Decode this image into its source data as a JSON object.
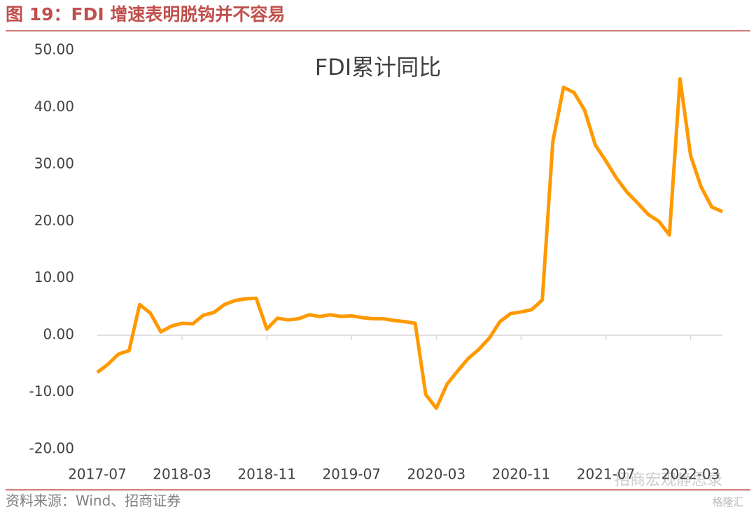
{
  "header": {
    "title": "图 19：FDI 增速表明脱钩并不容易"
  },
  "chart_data": {
    "type": "line",
    "title": "FDI累计同比",
    "categories": [
      "2017-07",
      null,
      null,
      null,
      null,
      null,
      null,
      null,
      "2018-03",
      null,
      null,
      null,
      null,
      null,
      null,
      null,
      "2018-11",
      null,
      null,
      null,
      null,
      null,
      null,
      null,
      "2019-07",
      null,
      null,
      null,
      null,
      null,
      null,
      null,
      "2020-03",
      null,
      null,
      null,
      null,
      null,
      null,
      null,
      "2020-11",
      null,
      null,
      null,
      null,
      null,
      null,
      null,
      "2021-07",
      null,
      null,
      null,
      null,
      null,
      null,
      null,
      "2022-03",
      null,
      null,
      null
    ],
    "series": [
      {
        "name": "FDI累计同比",
        "color": "#ff9900",
        "values": [
          -6.5,
          -5.1,
          -3.3,
          -2.7,
          5.4,
          3.9,
          0.6,
          1.6,
          2.1,
          2.0,
          3.5,
          4.0,
          5.4,
          6.1,
          6.4,
          6.5,
          1.1,
          3.0,
          2.7,
          2.9,
          3.6,
          3.3,
          3.6,
          3.3,
          3.4,
          3.1,
          2.9,
          2.9,
          2.6,
          2.4,
          2.1,
          -10.4,
          -12.8,
          -8.6,
          -6.3,
          -4.1,
          -2.5,
          -0.5,
          2.4,
          3.8,
          4.1,
          4.5,
          6.2,
          34.0,
          43.5,
          42.6,
          39.5,
          33.4,
          30.6,
          27.6,
          25.1,
          23.2,
          21.2,
          20.0,
          17.6,
          45.0,
          31.5,
          26.0,
          22.5,
          21.7
        ]
      }
    ],
    "ylim": [
      -20,
      50
    ],
    "yticks": [
      {
        "value": -20,
        "label": "-20.00"
      },
      {
        "value": -10,
        "label": "-10.00"
      },
      {
        "value": 0,
        "label": "0.00"
      },
      {
        "value": 10,
        "label": "10.00"
      },
      {
        "value": 20,
        "label": "20.00"
      },
      {
        "value": 30,
        "label": "30.00"
      },
      {
        "value": 40,
        "label": "40.00"
      },
      {
        "value": 50,
        "label": "50.00"
      }
    ],
    "grid": false
  },
  "footer": {
    "source": "资料来源：Wind、招商证券"
  },
  "watermarks": [
    "招商宏观静思录",
    "格隆汇"
  ]
}
